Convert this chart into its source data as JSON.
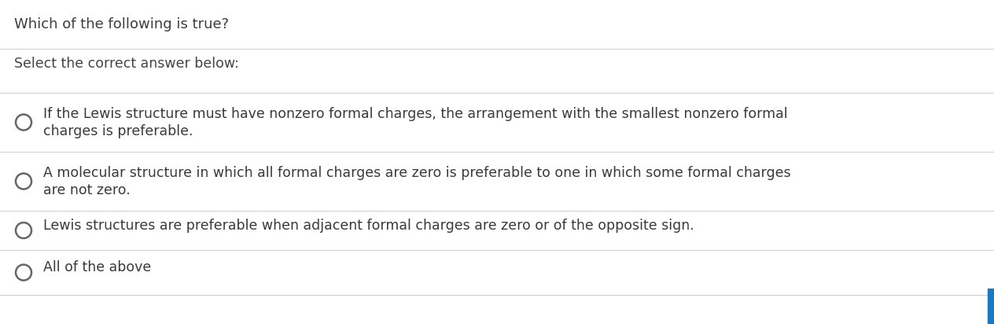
{
  "title": "Which of the following is true?",
  "subtitle": "Select the correct answer below:",
  "title_color": "#3d3d3d",
  "subtitle_color": "#444444",
  "background_color": "#ffffff",
  "line_color": "#d0d0d0",
  "option_text_color": "#3a3a3a",
  "circle_edge_color": "#666666",
  "accent_color": "#1a7abf",
  "figsize": [
    12.64,
    4.12
  ],
  "dpi": 100,
  "option_lines": [
    [
      "If the Lewis structure must have nonzero formal charges, the arrangement with the smallest nonzero formal",
      "charges is preferable."
    ],
    [
      "A molecular structure in which all formal charges are zero is preferable to one in which some formal charges",
      "are not zero."
    ],
    [
      "Lewis structures are preferable when adjacent formal charges are zero or of the opposite sign."
    ],
    [
      "All of the above"
    ]
  ]
}
